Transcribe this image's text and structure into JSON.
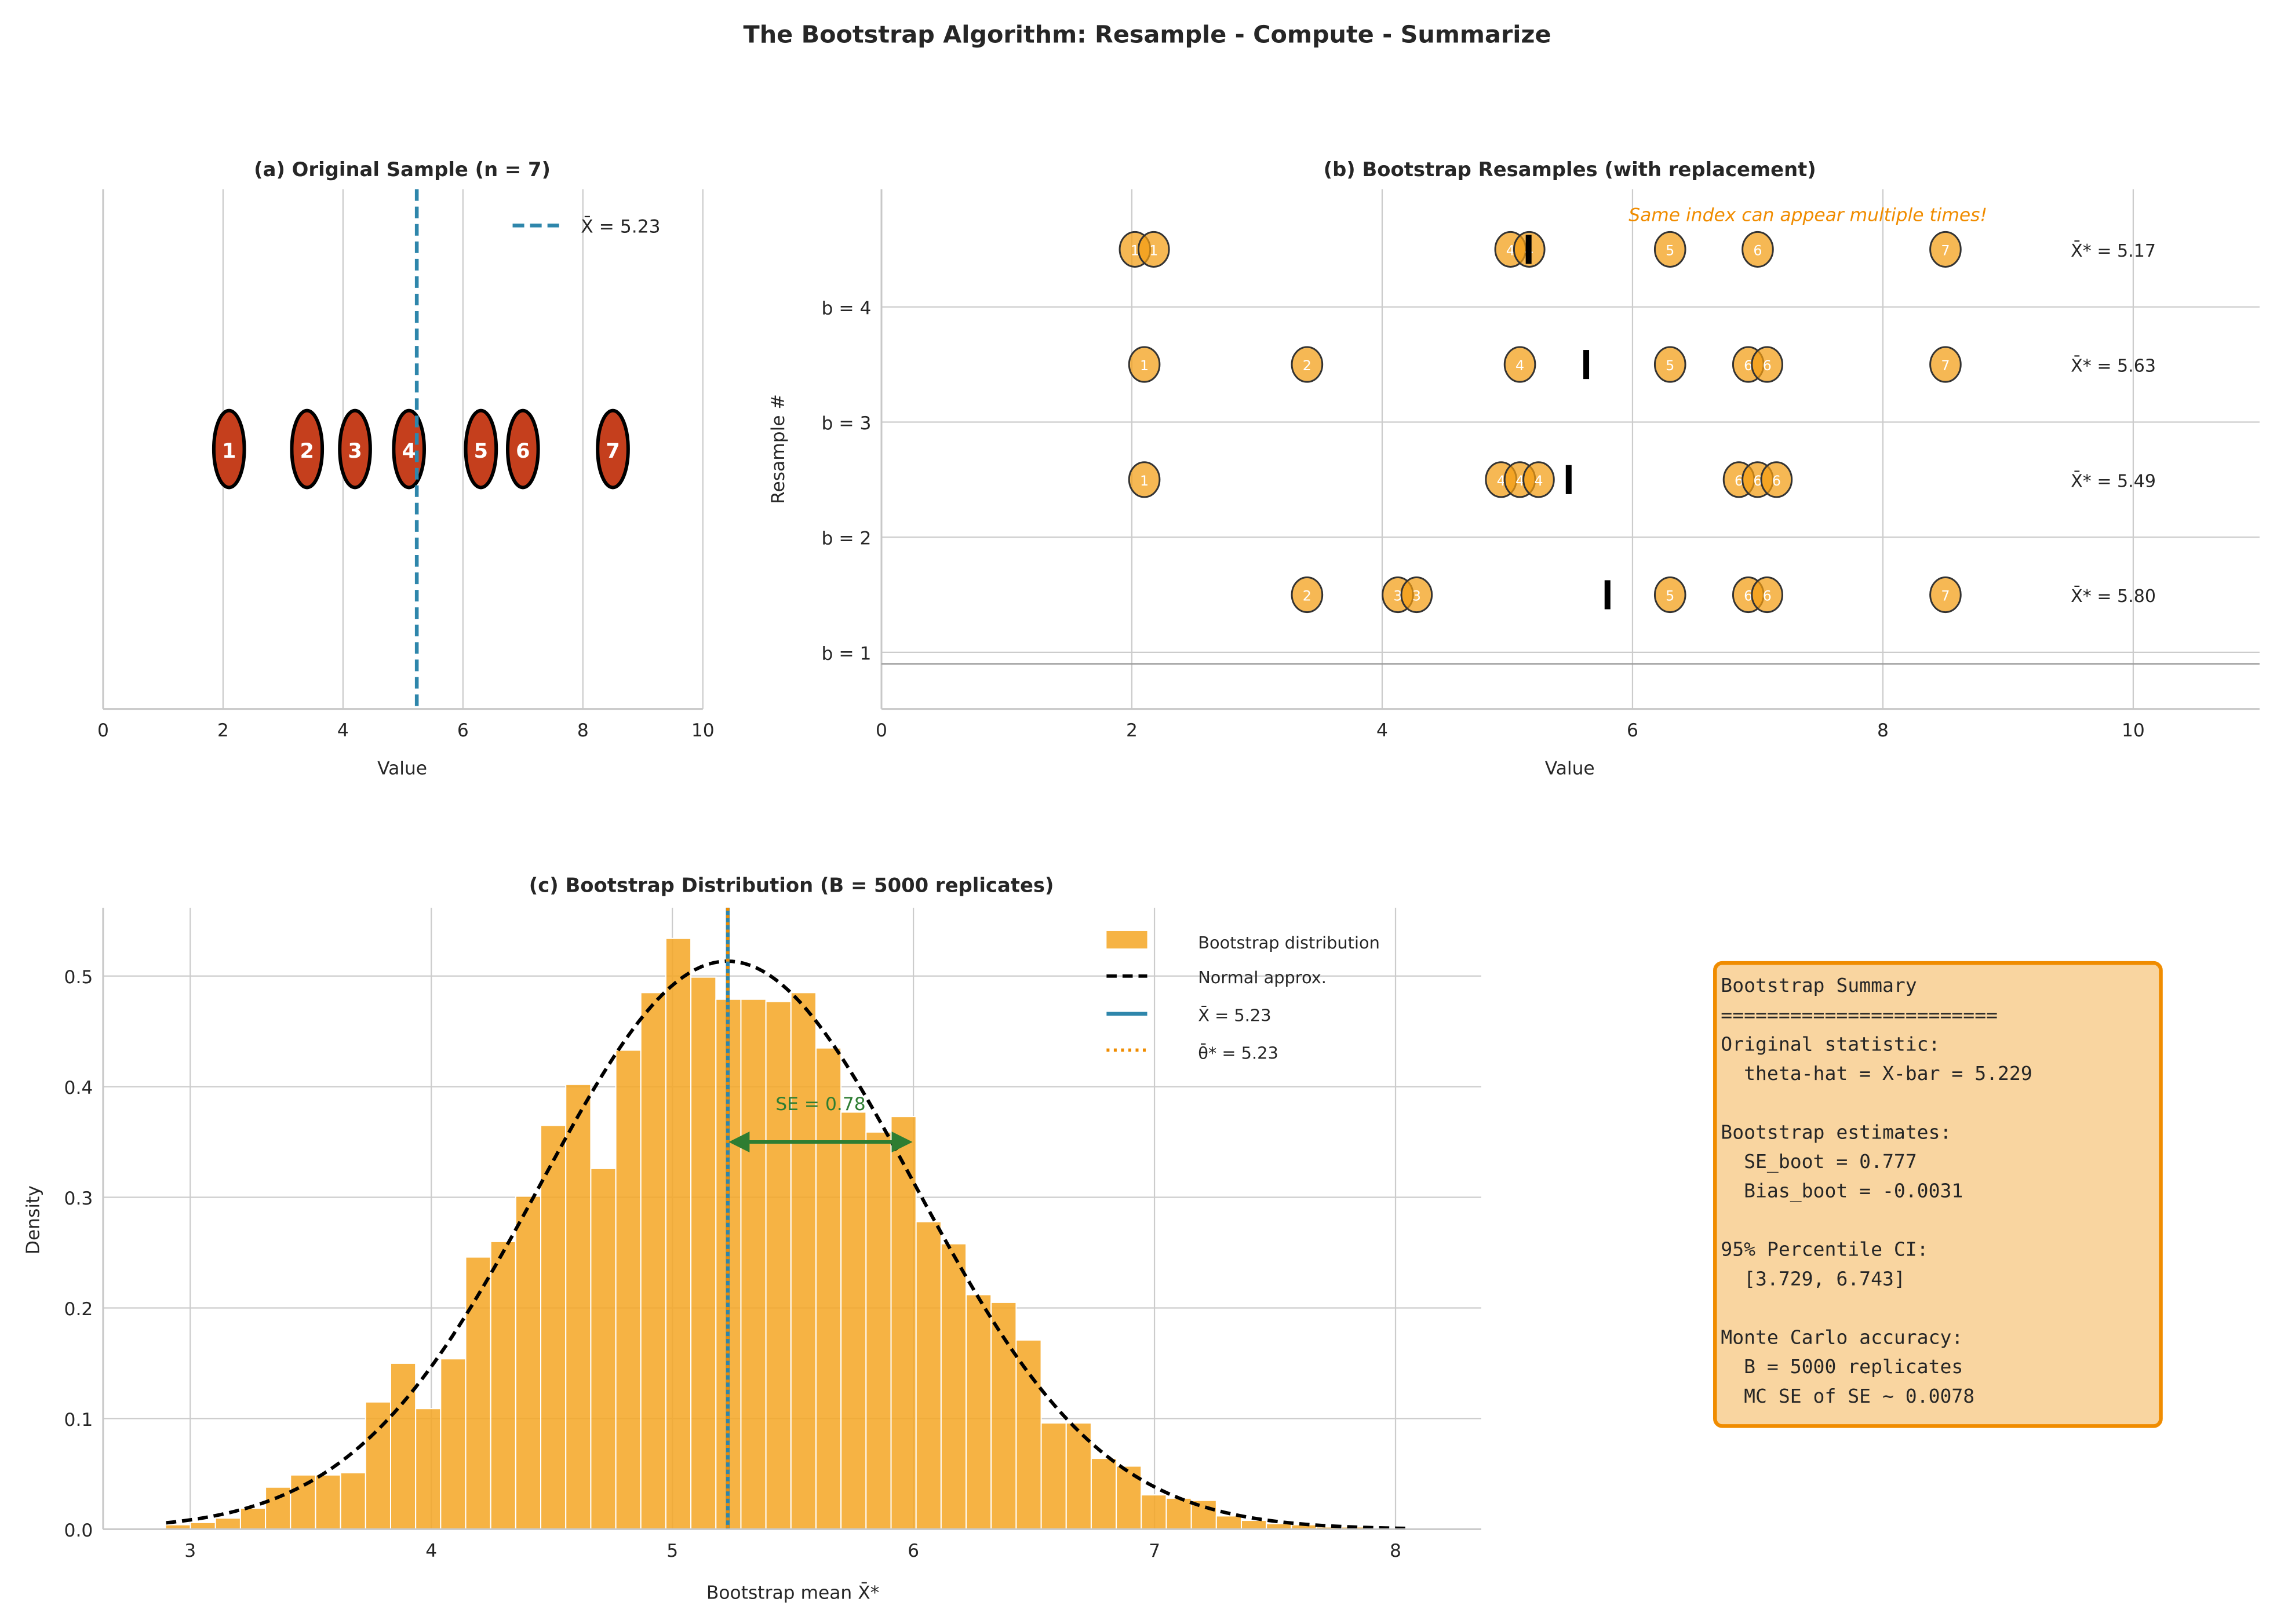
{
  "title": "The Bootstrap Algorithm: Resample - Compute - Summarize",
  "colors": {
    "original_point": "#c53f1d",
    "resample_point": "#f39c12",
    "hist": "#f5a623",
    "mean_line": "#2e86ab",
    "theta_line": "#f08c00",
    "se_arrow": "#2e7d32",
    "annotation": "#f08c00",
    "summary_bg": "#f9d5a0",
    "summary_border": "#f08c00"
  },
  "chart_data": [
    {
      "id": "a",
      "type": "scatter",
      "title": "(a) Original Sample (n = 7)",
      "xlabel": "Value",
      "xlim": [
        0,
        10
      ],
      "xticks": [
        "0",
        "2",
        "4",
        "6",
        "8",
        "10"
      ],
      "points": [
        {
          "label": "1",
          "x": 2.1
        },
        {
          "label": "2",
          "x": 3.4
        },
        {
          "label": "3",
          "x": 4.2
        },
        {
          "label": "4",
          "x": 5.1
        },
        {
          "label": "5",
          "x": 6.3
        },
        {
          "label": "6",
          "x": 7.0
        },
        {
          "label": "7",
          "x": 8.5
        }
      ],
      "mean": 5.23,
      "legend": [
        {
          "label": "X̄ = 5.23",
          "style": "dashed"
        }
      ],
      "legend_position": "top-right",
      "grid": true
    },
    {
      "id": "b",
      "type": "scatter",
      "title": "(b) Bootstrap Resamples (with replacement)",
      "xlabel": "Value",
      "ylabel": "Resample #",
      "xlim": [
        0,
        11
      ],
      "ylim": [
        0.5,
        5.02
      ],
      "xticks": [
        "0",
        "2",
        "4",
        "6",
        "8",
        "10"
      ],
      "yticks": [
        "b = 1",
        "b = 2",
        "b = 3",
        "b = 4"
      ],
      "annotation": "Same index can appear multiple times!",
      "resamples": [
        {
          "indices": [
            2,
            3,
            3,
            5,
            6,
            6,
            7
          ],
          "mean": 5.8,
          "label": "X̄* = 5.80"
        },
        {
          "indices": [
            1,
            4,
            4,
            4,
            6,
            6,
            6
          ],
          "mean": 5.49,
          "label": "X̄* = 5.49"
        },
        {
          "indices": [
            1,
            2,
            4,
            5,
            6,
            6,
            7
          ],
          "mean": 5.63,
          "label": "X̄* = 5.63"
        },
        {
          "indices": [
            1,
            1,
            4,
            4,
            5,
            6,
            7
          ],
          "mean": 5.17,
          "label": "X̄* = 5.17"
        }
      ],
      "grid": true
    },
    {
      "id": "c",
      "type": "bar",
      "title": "(c) Bootstrap Distribution (B = 5000 replicates)",
      "xlabel": "Bootstrap mean X̄*",
      "ylabel": "Density",
      "xlim": [
        2.64,
        8.35
      ],
      "ylim": [
        0,
        0.562
      ],
      "xticks": [
        "3",
        "4",
        "5",
        "6",
        "7",
        "8"
      ],
      "yticks": [
        "0.0",
        "0.1",
        "0.2",
        "0.3",
        "0.4",
        "0.5"
      ],
      "bin_start": 2.897,
      "bin_width": 0.1038,
      "values": [
        0.004,
        0.006,
        0.01,
        0.019,
        0.038,
        0.049,
        0.049,
        0.051,
        0.115,
        0.15,
        0.109,
        0.154,
        0.246,
        0.26,
        0.301,
        0.365,
        0.402,
        0.326,
        0.433,
        0.485,
        0.534,
        0.499,
        0.479,
        0.479,
        0.477,
        0.485,
        0.435,
        0.377,
        0.359,
        0.373,
        0.278,
        0.258,
        0.212,
        0.205,
        0.171,
        0.096,
        0.096,
        0.064,
        0.057,
        0.031,
        0.028,
        0.026,
        0.012,
        0.008,
        0.005,
        0.004,
        0.002,
        0.002,
        0.001,
        0.001
      ],
      "normal": {
        "mean": 5.229,
        "sd": 0.777,
        "range": [
          2.9,
          8.06
        ]
      },
      "xbar": 5.23,
      "theta_star": 5.23,
      "se_annotation": {
        "label": "SE = 0.78",
        "from": 5.23,
        "to": 6.0,
        "y": 0.35
      },
      "legend": [
        "Bootstrap distribution",
        "Normal approx.",
        "X̄ = 5.23",
        "θ̄* = 5.23"
      ],
      "legend_position": "top-right",
      "grid": true
    }
  ],
  "summary": {
    "lines": [
      "Bootstrap Summary",
      "========================",
      "Original statistic:",
      "  theta-hat = X-bar = 5.229",
      "",
      "Bootstrap estimates:",
      "  SE_boot = 0.777",
      "  Bias_boot = -0.0031",
      "",
      "95% Percentile CI:",
      "  [3.729, 6.743]",
      "",
      "Monte Carlo accuracy:",
      "  B = 5000 replicates",
      "  MC SE of SE ~ 0.0078"
    ]
  }
}
